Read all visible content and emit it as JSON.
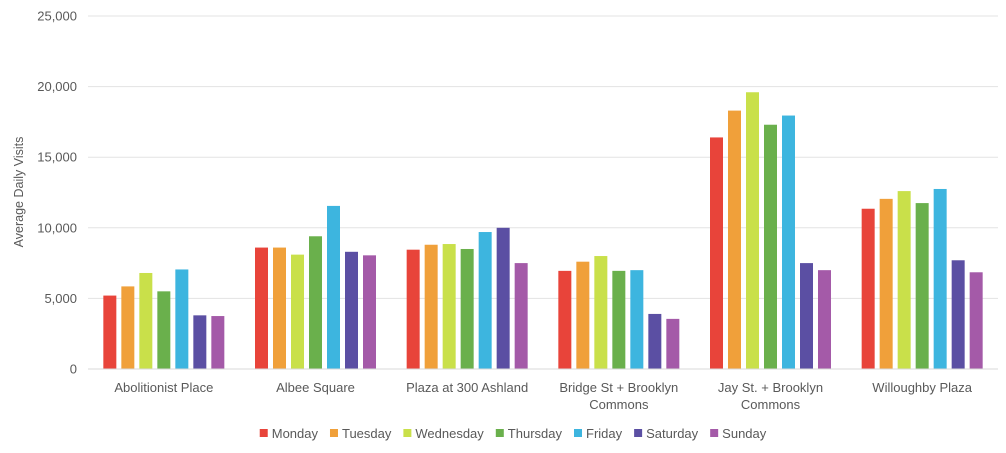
{
  "chart_data": {
    "type": "bar",
    "title": "",
    "xlabel": "",
    "ylabel": "Average Daily Visits",
    "ylim": [
      0,
      25000
    ],
    "yticks": [
      0,
      5000,
      10000,
      15000,
      20000,
      25000
    ],
    "ytick_labels": [
      "0",
      "5,000",
      "10,000",
      "15,000",
      "20,000",
      "25,000"
    ],
    "grid": true,
    "legend_position": "bottom",
    "categories": [
      [
        "Abolitionist Place"
      ],
      [
        "Albee Square"
      ],
      [
        "Plaza at 300 Ashland"
      ],
      [
        "Bridge St + Brooklyn",
        "Commons"
      ],
      [
        "Jay St. + Brooklyn",
        "Commons"
      ],
      [
        "Willoughby Plaza"
      ]
    ],
    "series": [
      {
        "name": "Monday",
        "color": "#e8443a",
        "values": [
          5200,
          8600,
          8450,
          6950,
          16400,
          11350
        ]
      },
      {
        "name": "Tuesday",
        "color": "#f0a03a",
        "values": [
          5850,
          8600,
          8800,
          7600,
          18300,
          12050
        ]
      },
      {
        "name": "Wednesday",
        "color": "#c9e04a",
        "values": [
          6800,
          8100,
          8850,
          8000,
          19600,
          12600
        ]
      },
      {
        "name": "Thursday",
        "color": "#6ab04c",
        "values": [
          5500,
          9400,
          8500,
          6950,
          17300,
          11750
        ]
      },
      {
        "name": "Friday",
        "color": "#3db5df",
        "values": [
          7050,
          11550,
          9700,
          7000,
          17950,
          12750
        ]
      },
      {
        "name": "Saturday",
        "color": "#5b4fa3",
        "values": [
          3800,
          8300,
          10000,
          3900,
          7500,
          7700
        ]
      },
      {
        "name": "Sunday",
        "color": "#a45aa8",
        "values": [
          3750,
          8050,
          7500,
          3550,
          7000,
          6850
        ]
      }
    ]
  }
}
